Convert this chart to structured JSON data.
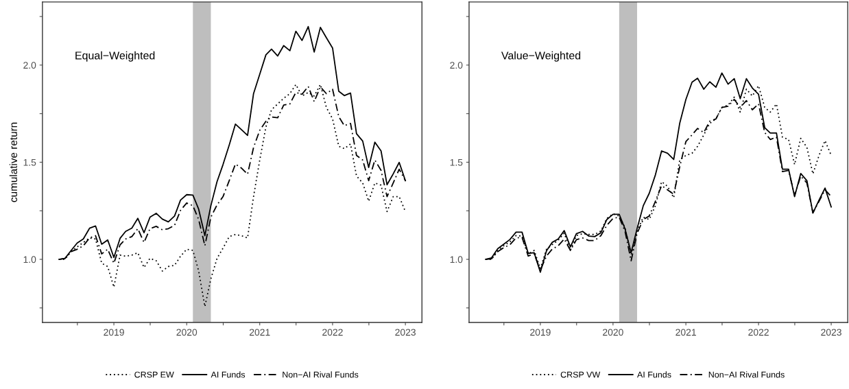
{
  "chart_data": [
    {
      "type": "line",
      "ylabel": "cumulative return",
      "annotations": [
        "Equal−Weighted"
      ],
      "legend": "bottom",
      "grid": false,
      "x": [
        "2018-04",
        "2018-05",
        "2018-06",
        "2018-07",
        "2018-08",
        "2018-09",
        "2018-10",
        "2018-11",
        "2018-12",
        "2019-01",
        "2019-02",
        "2019-03",
        "2019-04",
        "2019-05",
        "2019-06",
        "2019-07",
        "2019-08",
        "2019-09",
        "2019-10",
        "2019-11",
        "2019-12",
        "2020-01",
        "2020-02",
        "2020-03",
        "2020-04",
        "2020-05",
        "2020-06",
        "2020-07",
        "2020-08",
        "2020-09",
        "2020-10",
        "2020-11",
        "2020-12",
        "2021-01",
        "2021-02",
        "2021-03",
        "2021-04",
        "2021-05",
        "2021-06",
        "2021-07",
        "2021-08",
        "2021-09",
        "2021-10",
        "2021-11",
        "2021-12",
        "2022-01",
        "2022-02",
        "2022-03",
        "2022-04",
        "2022-05",
        "2022-06",
        "2022-07",
        "2022-08",
        "2022-09",
        "2022-10",
        "2022-11",
        "2022-12",
        "2023-01"
      ],
      "xlim": [
        "2018-01-08",
        "2023-03-25"
      ],
      "xticks": [
        {
          "value": "2018-07-02",
          "label": null
        },
        {
          "value": "2019-01-01",
          "label": "2019"
        },
        {
          "value": "2019-07-02",
          "label": null
        },
        {
          "value": "2020-01-01",
          "label": "2020"
        },
        {
          "value": "2020-07-02",
          "label": null
        },
        {
          "value": "2021-01-01",
          "label": "2021"
        },
        {
          "value": "2021-07-02",
          "label": null
        },
        {
          "value": "2022-01-01",
          "label": "2022"
        },
        {
          "value": "2022-07-02",
          "label": null
        },
        {
          "value": "2023-01-01",
          "label": "2023"
        }
      ],
      "ylim": [
        0.675,
        2.325
      ],
      "yticks": [
        {
          "value": 0.75,
          "label": null
        },
        {
          "value": 1.0,
          "label": "1.0"
        },
        {
          "value": 1.25,
          "label": null
        },
        {
          "value": 1.5,
          "label": "1.5"
        },
        {
          "value": 1.75,
          "label": null
        },
        {
          "value": 2.0,
          "label": "2.0"
        },
        {
          "value": 2.25,
          "label": null
        }
      ],
      "bands": [
        {
          "axis": "x",
          "from": "2020-02",
          "to": "2020-05",
          "color": "#bebebe"
        }
      ],
      "series": [
        {
          "name": "CRSP EW",
          "color": "#000000",
          "line_style": "dotted",
          "values": [
            1.0,
            1.0,
            1.04,
            1.064,
            1.087,
            1.11,
            1.105,
            0.98,
            0.963,
            0.857,
            1.022,
            1.016,
            1.022,
            1.034,
            0.958,
            1.005,
            0.993,
            0.94,
            0.963,
            0.969,
            1.016,
            1.052,
            1.046,
            0.94,
            0.757,
            0.899,
            1.005,
            1.058,
            1.117,
            1.128,
            1.122,
            1.11,
            1.323,
            1.511,
            1.682,
            1.77,
            1.8,
            1.829,
            1.853,
            1.9,
            1.841,
            1.859,
            1.841,
            1.9,
            1.782,
            1.723,
            1.582,
            1.57,
            1.594,
            1.429,
            1.393,
            1.299,
            1.393,
            1.382,
            1.246,
            1.323,
            1.323,
            1.246
          ]
        },
        {
          "name": "AI Funds",
          "color": "#000000",
          "line_style": "solid",
          "values": [
            1.0,
            1.005,
            1.046,
            1.084,
            1.105,
            1.16,
            1.172,
            1.078,
            1.1,
            1.01,
            1.108,
            1.144,
            1.161,
            1.211,
            1.137,
            1.217,
            1.237,
            1.207,
            1.193,
            1.223,
            1.305,
            1.333,
            1.331,
            1.258,
            1.122,
            1.276,
            1.4,
            1.488,
            1.588,
            1.696,
            1.668,
            1.638,
            1.853,
            1.953,
            2.053,
            2.082,
            2.047,
            2.1,
            2.074,
            2.174,
            2.127,
            2.198,
            2.067,
            2.194,
            2.141,
            2.088,
            1.865,
            1.843,
            1.856,
            1.647,
            1.609,
            1.473,
            1.603,
            1.558,
            1.384,
            1.44,
            1.499,
            1.405
          ]
        },
        {
          "name": "Non−AI Rival Funds",
          "color": "#000000",
          "line_style": "dashdot",
          "values": [
            1.0,
            1.005,
            1.04,
            1.052,
            1.07,
            1.11,
            1.122,
            1.028,
            1.052,
            0.98,
            1.075,
            1.105,
            1.117,
            1.158,
            1.087,
            1.158,
            1.17,
            1.152,
            1.158,
            1.175,
            1.252,
            1.29,
            1.276,
            1.205,
            1.07,
            1.217,
            1.28,
            1.323,
            1.405,
            1.49,
            1.47,
            1.438,
            1.576,
            1.664,
            1.711,
            1.733,
            1.729,
            1.794,
            1.8,
            1.859,
            1.85,
            1.89,
            1.812,
            1.888,
            1.853,
            1.876,
            1.735,
            1.688,
            1.7,
            1.535,
            1.511,
            1.405,
            1.511,
            1.458,
            1.323,
            1.393,
            1.464,
            1.405
          ]
        }
      ]
    },
    {
      "type": "line",
      "annotations": [
        "Value−Weighted"
      ],
      "legend": "bottom",
      "grid": false,
      "x": [
        "2018-04",
        "2018-05",
        "2018-06",
        "2018-07",
        "2018-08",
        "2018-09",
        "2018-10",
        "2018-11",
        "2018-12",
        "2019-01",
        "2019-02",
        "2019-03",
        "2019-04",
        "2019-05",
        "2019-06",
        "2019-07",
        "2019-08",
        "2019-09",
        "2019-10",
        "2019-11",
        "2019-12",
        "2020-01",
        "2020-02",
        "2020-03",
        "2020-04",
        "2020-05",
        "2020-06",
        "2020-07",
        "2020-08",
        "2020-09",
        "2020-10",
        "2020-11",
        "2020-12",
        "2021-01",
        "2021-02",
        "2021-03",
        "2021-04",
        "2021-05",
        "2021-06",
        "2021-07",
        "2021-08",
        "2021-09",
        "2021-10",
        "2021-11",
        "2021-12",
        "2022-01",
        "2022-02",
        "2022-03",
        "2022-04",
        "2022-05",
        "2022-06",
        "2022-07",
        "2022-08",
        "2022-09",
        "2022-10",
        "2022-11",
        "2022-12",
        "2023-01"
      ],
      "xlim": [
        "2018-01-08",
        "2023-03-25"
      ],
      "xticks": [
        {
          "value": "2018-07-02",
          "label": null
        },
        {
          "value": "2019-01-01",
          "label": "2019"
        },
        {
          "value": "2019-07-02",
          "label": null
        },
        {
          "value": "2020-01-01",
          "label": "2020"
        },
        {
          "value": "2020-07-02",
          "label": null
        },
        {
          "value": "2021-01-01",
          "label": "2021"
        },
        {
          "value": "2021-07-02",
          "label": null
        },
        {
          "value": "2022-01-01",
          "label": "2022"
        },
        {
          "value": "2022-07-02",
          "label": null
        },
        {
          "value": "2023-01-01",
          "label": "2023"
        }
      ],
      "ylim": [
        0.675,
        2.325
      ],
      "yticks": [
        {
          "value": 0.75,
          "label": null
        },
        {
          "value": 1.0,
          "label": "1.0"
        },
        {
          "value": 1.25,
          "label": null
        },
        {
          "value": 1.5,
          "label": "1.5"
        },
        {
          "value": 1.75,
          "label": null
        },
        {
          "value": 2.0,
          "label": "2.0"
        },
        {
          "value": 2.25,
          "label": null
        }
      ],
      "bands": [
        {
          "axis": "x",
          "from": "2020-02",
          "to": "2020-05",
          "color": "#bebebe"
        }
      ],
      "series": [
        {
          "name": "CRSP VW",
          "color": "#000000",
          "line_style": "dotted",
          "values": [
            1.0,
            1.0,
            1.045,
            1.07,
            1.09,
            1.122,
            1.12,
            1.028,
            1.046,
            0.952,
            1.052,
            1.075,
            1.099,
            1.134,
            1.046,
            1.122,
            1.132,
            1.128,
            1.128,
            1.146,
            1.211,
            1.234,
            1.223,
            1.164,
            1.022,
            1.146,
            1.217,
            1.205,
            1.276,
            1.4,
            1.376,
            1.317,
            1.511,
            1.535,
            1.546,
            1.582,
            1.641,
            1.7,
            1.723,
            1.782,
            1.794,
            1.835,
            1.758,
            1.876,
            1.841,
            1.894,
            1.782,
            1.758,
            1.8,
            1.629,
            1.617,
            1.488,
            1.623,
            1.576,
            1.44,
            1.535,
            1.611,
            1.535
          ]
        },
        {
          "name": "AI Funds",
          "color": "#000000",
          "line_style": "solid",
          "values": [
            1.0,
            1.008,
            1.055,
            1.078,
            1.102,
            1.14,
            1.14,
            1.031,
            1.034,
            0.934,
            1.044,
            1.087,
            1.105,
            1.148,
            1.064,
            1.132,
            1.144,
            1.12,
            1.117,
            1.137,
            1.205,
            1.232,
            1.232,
            1.158,
            1.034,
            1.158,
            1.276,
            1.34,
            1.435,
            1.558,
            1.546,
            1.514,
            1.7,
            1.823,
            1.912,
            1.932,
            1.876,
            1.914,
            1.886,
            1.959,
            1.902,
            1.93,
            1.827,
            1.93,
            1.882,
            1.85,
            1.678,
            1.65,
            1.65,
            1.464,
            1.464,
            1.323,
            1.442,
            1.405,
            1.238,
            1.305,
            1.367,
            1.27
          ]
        },
        {
          "name": "Non−AI Rival Funds",
          "color": "#000000",
          "line_style": "dashdot",
          "values": [
            1.0,
            1.003,
            1.04,
            1.06,
            1.075,
            1.11,
            1.113,
            1.017,
            1.028,
            0.946,
            1.017,
            1.052,
            1.07,
            1.105,
            1.046,
            1.101,
            1.11,
            1.097,
            1.097,
            1.122,
            1.175,
            1.211,
            1.217,
            1.146,
            0.993,
            1.134,
            1.205,
            1.223,
            1.299,
            1.379,
            1.358,
            1.335,
            1.476,
            1.606,
            1.641,
            1.674,
            1.653,
            1.711,
            1.723,
            1.782,
            1.788,
            1.823,
            1.782,
            1.817,
            1.77,
            1.8,
            1.653,
            1.617,
            1.629,
            1.452,
            1.458,
            1.329,
            1.429,
            1.393,
            1.24,
            1.299,
            1.358,
            1.323
          ]
        }
      ]
    }
  ]
}
